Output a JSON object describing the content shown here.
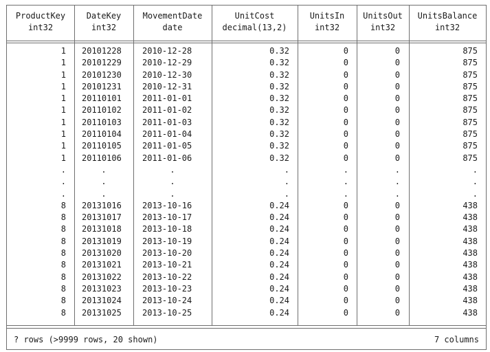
{
  "columns": [
    {
      "name": "ProductKey",
      "type": "int32"
    },
    {
      "name": "DateKey",
      "type": "int32"
    },
    {
      "name": "MovementDate",
      "type": "date"
    },
    {
      "name": "UnitCost",
      "type": "decimal(13,2)"
    },
    {
      "name": "UnitsIn",
      "type": "int32"
    },
    {
      "name": "UnitsOut",
      "type": "int32"
    },
    {
      "name": "UnitsBalance",
      "type": "int32"
    }
  ],
  "rows": [
    [
      "1",
      "20101228",
      "2010-12-28",
      "0.32",
      "0",
      "0",
      "875"
    ],
    [
      "1",
      "20101229",
      "2010-12-29",
      "0.32",
      "0",
      "0",
      "875"
    ],
    [
      "1",
      "20101230",
      "2010-12-30",
      "0.32",
      "0",
      "0",
      "875"
    ],
    [
      "1",
      "20101231",
      "2010-12-31",
      "0.32",
      "0",
      "0",
      "875"
    ],
    [
      "1",
      "20110101",
      "2011-01-01",
      "0.32",
      "0",
      "0",
      "875"
    ],
    [
      "1",
      "20110102",
      "2011-01-02",
      "0.32",
      "0",
      "0",
      "875"
    ],
    [
      "1",
      "20110103",
      "2011-01-03",
      "0.32",
      "0",
      "0",
      "875"
    ],
    [
      "1",
      "20110104",
      "2011-01-04",
      "0.32",
      "0",
      "0",
      "875"
    ],
    [
      "1",
      "20110105",
      "2011-01-05",
      "0.32",
      "0",
      "0",
      "875"
    ],
    [
      "1",
      "20110106",
      "2011-01-06",
      "0.32",
      "0",
      "0",
      "875"
    ],
    [
      ".",
      ".",
      ".",
      ".",
      ".",
      ".",
      "."
    ],
    [
      ".",
      ".",
      ".",
      ".",
      ".",
      ".",
      "."
    ],
    [
      ".",
      ".",
      ".",
      ".",
      ".",
      ".",
      "."
    ],
    [
      "8",
      "20131016",
      "2013-10-16",
      "0.24",
      "0",
      "0",
      "438"
    ],
    [
      "8",
      "20131017",
      "2013-10-17",
      "0.24",
      "0",
      "0",
      "438"
    ],
    [
      "8",
      "20131018",
      "2013-10-18",
      "0.24",
      "0",
      "0",
      "438"
    ],
    [
      "8",
      "20131019",
      "2013-10-19",
      "0.24",
      "0",
      "0",
      "438"
    ],
    [
      "8",
      "20131020",
      "2013-10-20",
      "0.24",
      "0",
      "0",
      "438"
    ],
    [
      "8",
      "20131021",
      "2013-10-21",
      "0.24",
      "0",
      "0",
      "438"
    ],
    [
      "8",
      "20131022",
      "2013-10-22",
      "0.24",
      "0",
      "0",
      "438"
    ],
    [
      "8",
      "20131023",
      "2013-10-23",
      "0.24",
      "0",
      "0",
      "438"
    ],
    [
      "8",
      "20131024",
      "2013-10-24",
      "0.24",
      "0",
      "0",
      "438"
    ],
    [
      "8",
      "20131025",
      "2013-10-25",
      "0.24",
      "0",
      "0",
      "438"
    ]
  ],
  "footer": {
    "row_count": "? rows (>9999 rows, 20 shown)",
    "col_count": "7 columns"
  }
}
